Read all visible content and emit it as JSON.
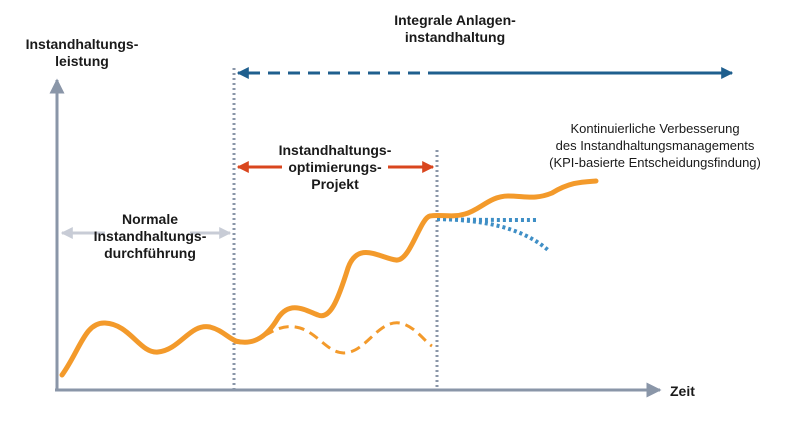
{
  "labels": {
    "y_axis": [
      "Instandhaltungs-",
      "leistung"
    ],
    "x_axis": "Zeit",
    "integral": [
      "Integrale Anlagen-",
      "instandhaltung"
    ],
    "normal": [
      "Normale",
      "Instandhaltungs-",
      "durchführung"
    ],
    "project": [
      "Instandhaltungs-",
      "optimierungs-",
      "Projekt"
    ],
    "improvement": [
      "Kontinuierliche Verbesserung",
      "des Instandhaltungsmanagements",
      "(KPI-basierte Entscheidungsfindung)"
    ]
  },
  "colors": {
    "axis": "#8a96a8",
    "divider": "#8a96a8",
    "curve": "#f39a2b",
    "dashed_arrow": "#1f5f8e",
    "project_arrow": "#d9461e",
    "normal_arrow": "#c8ccd6",
    "dotted_branch": "#3f8fc6"
  }
}
